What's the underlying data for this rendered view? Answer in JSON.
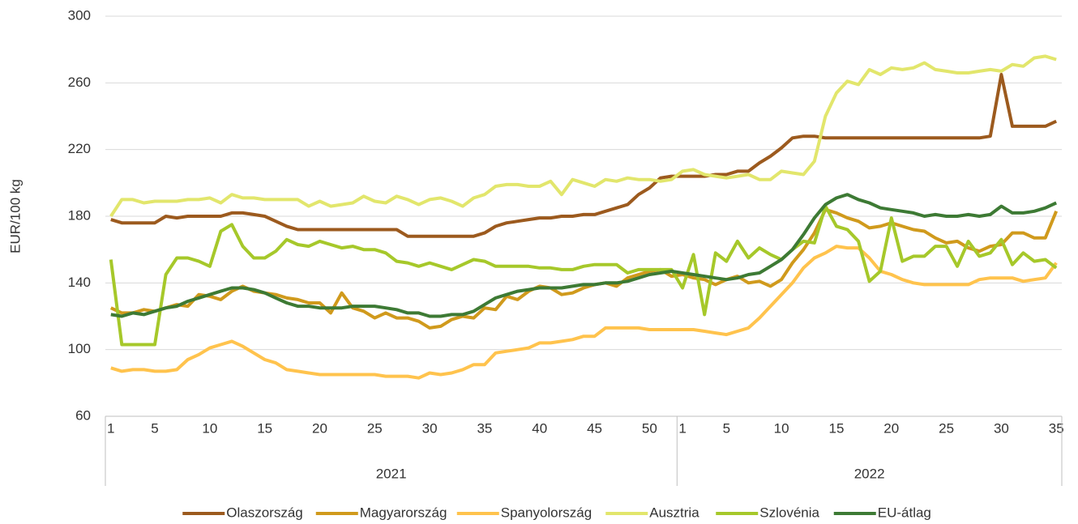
{
  "chart_data": {
    "type": "line",
    "y_label": "EUR/100 kg",
    "categories": [
      1,
      null,
      null,
      null,
      5,
      null,
      null,
      null,
      null,
      10,
      null,
      null,
      null,
      null,
      15,
      null,
      null,
      null,
      null,
      20,
      null,
      null,
      null,
      null,
      25,
      null,
      null,
      null,
      null,
      30,
      null,
      null,
      null,
      null,
      35,
      null,
      null,
      null,
      null,
      40,
      null,
      null,
      null,
      null,
      45,
      null,
      null,
      null,
      null,
      50,
      null,
      null,
      1,
      null,
      null,
      null,
      5,
      null,
      null,
      null,
      null,
      10,
      null,
      null,
      null,
      null,
      15,
      null,
      null,
      null,
      null,
      20,
      null,
      null,
      null,
      null,
      25,
      null,
      null,
      null,
      null,
      30,
      null,
      null,
      null,
      null,
      35
    ],
    "groups": [
      {
        "label": "2021",
        "count": 52
      },
      {
        "label": "2022",
        "count": 35
      }
    ],
    "ylim": [
      60,
      300
    ],
    "yticks": [
      60,
      100,
      140,
      180,
      220,
      260,
      300
    ],
    "grid": true,
    "legend": "bottom",
    "series": [
      {
        "name": "Olaszország",
        "color": "#9c5a1e",
        "values": [
          178,
          176,
          176,
          176,
          176,
          180,
          179,
          180,
          180,
          180,
          180,
          182,
          182,
          181,
          180,
          177,
          174,
          172,
          172,
          172,
          172,
          172,
          172,
          172,
          172,
          172,
          172,
          168,
          168,
          168,
          168,
          168,
          168,
          168,
          170,
          174,
          176,
          177,
          178,
          179,
          179,
          180,
          180,
          181,
          181,
          183,
          185,
          187,
          193,
          197,
          203,
          204,
          204,
          204,
          204,
          205,
          205,
          207,
          207,
          212,
          216,
          221,
          227,
          228,
          228,
          227,
          227,
          227,
          227,
          227,
          227,
          227,
          227,
          227,
          227,
          227,
          227,
          227,
          227,
          227,
          228,
          265,
          234,
          234,
          234,
          234,
          237
        ]
      },
      {
        "name": "Magyarország",
        "color": "#d09a1c",
        "values": [
          125,
          122,
          122,
          124,
          123,
          125,
          127,
          126,
          133,
          132,
          130,
          135,
          138,
          135,
          134,
          133,
          131,
          130,
          128,
          128,
          122,
          134,
          125,
          123,
          119,
          122,
          119,
          119,
          117,
          113,
          114,
          118,
          120,
          119,
          125,
          124,
          132,
          130,
          135,
          138,
          137,
          133,
          134,
          137,
          139,
          140,
          138,
          143,
          145,
          147,
          148,
          144,
          145,
          143,
          142,
          139,
          142,
          144,
          140,
          141,
          138,
          142,
          152,
          160,
          170,
          184,
          182,
          179,
          177,
          173,
          174,
          176,
          174,
          172,
          171,
          167,
          164,
          165,
          161,
          159,
          162,
          163,
          170,
          170,
          167,
          167,
          183
        ]
      },
      {
        "name": "Spanyolország",
        "color": "#ffc34d",
        "values": [
          89,
          87,
          88,
          88,
          87,
          87,
          88,
          94,
          97,
          101,
          103,
          105,
          102,
          98,
          94,
          92,
          88,
          87,
          86,
          85,
          85,
          85,
          85,
          85,
          85,
          84,
          84,
          84,
          83,
          86,
          85,
          86,
          88,
          91,
          91,
          98,
          99,
          100,
          101,
          104,
          104,
          105,
          106,
          108,
          108,
          113,
          113,
          113,
          113,
          112,
          112,
          112,
          112,
          112,
          111,
          110,
          109,
          111,
          113,
          119,
          126,
          133,
          140,
          149,
          155,
          158,
          162,
          161,
          161,
          155,
          147,
          145,
          142,
          140,
          139,
          139,
          139,
          139,
          139,
          142,
          143,
          143,
          143,
          141,
          142,
          143,
          152
        ]
      },
      {
        "name": "Ausztria",
        "color": "#e2e66c",
        "values": [
          180,
          190,
          190,
          188,
          189,
          189,
          189,
          190,
          190,
          191,
          188,
          193,
          191,
          191,
          190,
          190,
          190,
          190,
          186,
          189,
          186,
          187,
          188,
          192,
          189,
          188,
          192,
          190,
          187,
          190,
          191,
          189,
          186,
          191,
          193,
          198,
          199,
          199,
          198,
          198,
          201,
          193,
          202,
          200,
          198,
          202,
          201,
          203,
          202,
          202,
          201,
          202,
          207,
          208,
          205,
          204,
          203,
          204,
          205,
          202,
          202,
          207,
          206,
          205,
          213,
          240,
          254,
          261,
          259,
          268,
          265,
          269,
          268,
          269,
          272,
          268,
          267,
          266,
          266,
          267,
          268,
          267,
          271,
          270,
          275,
          276,
          274
        ]
      },
      {
        "name": "Szlovénia",
        "color": "#a6c82a",
        "values": [
          154,
          103,
          103,
          103,
          103,
          145,
          155,
          155,
          153,
          150,
          171,
          175,
          162,
          155,
          155,
          159,
          166,
          163,
          162,
          165,
          163,
          161,
          162,
          160,
          160,
          158,
          153,
          152,
          150,
          152,
          150,
          148,
          151,
          154,
          153,
          150,
          150,
          150,
          150,
          149,
          149,
          148,
          148,
          150,
          151,
          151,
          151,
          146,
          148,
          148,
          148,
          148,
          137,
          157,
          121,
          158,
          153,
          165,
          155,
          161,
          157,
          154,
          160,
          165,
          164,
          186,
          174,
          172,
          165,
          141,
          147,
          179,
          153,
          156,
          156,
          162,
          162,
          150,
          165,
          156,
          158,
          166,
          151,
          158,
          153,
          154,
          149
        ]
      },
      {
        "name": "EU-átlag",
        "color": "#3d7a34",
        "values": [
          121,
          120,
          122,
          121,
          123,
          125,
          126,
          129,
          131,
          133,
          135,
          137,
          137,
          136,
          134,
          131,
          128,
          126,
          126,
          125,
          125,
          125,
          126,
          126,
          126,
          125,
          124,
          122,
          122,
          120,
          120,
          121,
          121,
          123,
          127,
          131,
          133,
          135,
          136,
          137,
          137,
          137,
          138,
          139,
          139,
          140,
          140,
          141,
          143,
          145,
          146,
          147,
          146,
          145,
          144,
          143,
          142,
          143,
          145,
          146,
          150,
          154,
          160,
          169,
          179,
          187,
          191,
          193,
          190,
          188,
          185,
          184,
          183,
          182,
          180,
          181,
          180,
          180,
          181,
          180,
          181,
          186,
          182,
          182,
          183,
          185,
          188
        ]
      }
    ]
  }
}
